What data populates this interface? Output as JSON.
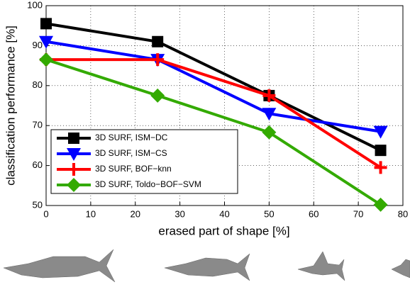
{
  "chart_data": {
    "type": "line",
    "x_label": "erased part of shape [%]",
    "y_label": "classification performance [%]",
    "x": [
      0,
      25,
      50,
      75
    ],
    "series": [
      {
        "name": "3D SURF, ISM−DC",
        "color": "#000000",
        "marker": "square",
        "values": [
          95.5,
          91,
          77.5,
          63.8
        ]
      },
      {
        "name": "3D SURF, ISM−CS",
        "color": "#0000ff",
        "marker": "triangle-down",
        "values": [
          91,
          86.5,
          73,
          68.5
        ]
      },
      {
        "name": "3D SURF, BOF−knn",
        "color": "#ff0000",
        "marker": "plus",
        "values": [
          86.5,
          86.5,
          77.5,
          59.5
        ]
      },
      {
        "name": "3D SURF, Toldo−BOF−SVM",
        "color": "#33aa00",
        "marker": "diamond",
        "values": [
          86.5,
          77.5,
          68.3,
          50.2
        ]
      }
    ],
    "xlim": [
      0,
      80
    ],
    "ylim": [
      50,
      100
    ],
    "xticks": [
      0,
      10,
      20,
      30,
      40,
      50,
      60,
      70,
      80
    ],
    "yticks": [
      50,
      60,
      70,
      80,
      90,
      100
    ],
    "grid": true,
    "legend": "lower left"
  }
}
